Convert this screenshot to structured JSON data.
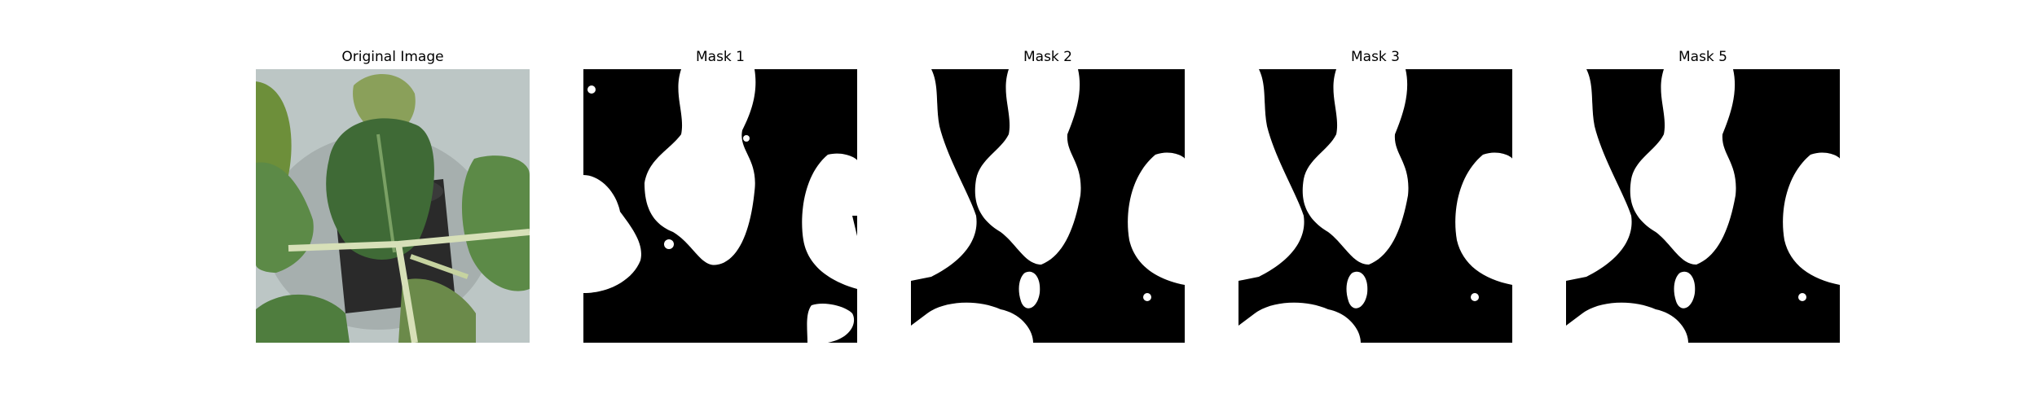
{
  "figure": {
    "panels": [
      {
        "title": "Original Image",
        "kind": "photo",
        "subject": "plant-photo"
      },
      {
        "title": "Mask 1",
        "kind": "mask",
        "subject": "binary-mask"
      },
      {
        "title": "Mask 2",
        "kind": "mask",
        "subject": "binary-mask"
      },
      {
        "title": "Mask 3",
        "kind": "mask",
        "subject": "binary-mask"
      },
      {
        "title": "Mask 5",
        "kind": "mask",
        "subject": "binary-mask"
      }
    ]
  },
  "colors": {
    "mask_background": "#000000",
    "mask_foreground": "#ffffff",
    "photo_background": "#bcc6c5",
    "leaf_dark": "#3f6a36",
    "leaf_mid": "#5c8a47",
    "leaf_light": "#8db26a",
    "stem": "#d7e0b8",
    "pot": "#2a2a2a",
    "shadow": "#9aa2a3"
  }
}
